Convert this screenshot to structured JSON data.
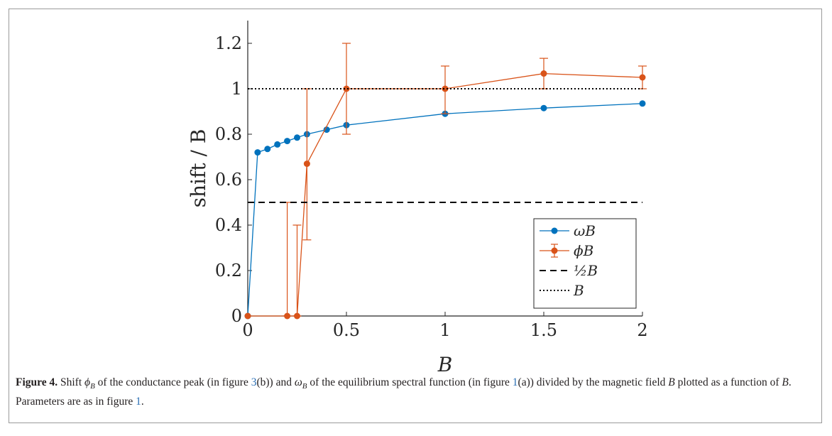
{
  "chart_data": {
    "type": "line",
    "xlabel": "B",
    "ylabel": "shift / B",
    "xlim": [
      0,
      2
    ],
    "ylim": [
      0,
      1.3
    ],
    "xticks": [
      "0",
      "0.5",
      "1",
      "1.5",
      "2"
    ],
    "xtick_values": [
      0,
      0.5,
      1,
      1.5,
      2
    ],
    "yticks": [
      "0",
      "0.2",
      "0.4",
      "0.6",
      "0.8",
      "1",
      "1.2"
    ],
    "ytick_values": [
      0,
      0.2,
      0.4,
      0.6,
      0.8,
      1.0,
      1.2
    ],
    "grid": false,
    "legend_position": "lower-right",
    "series": [
      {
        "name": "ωB",
        "color": "#0072BD",
        "style": "line-marker",
        "x": [
          0,
          0.05,
          0.1,
          0.15,
          0.2,
          0.25,
          0.3,
          0.4,
          0.5,
          1.0,
          1.5,
          2.0
        ],
        "y": [
          0,
          0.72,
          0.735,
          0.755,
          0.77,
          0.785,
          0.8,
          0.82,
          0.84,
          0.89,
          0.915,
          0.935
        ]
      },
      {
        "name": "ϕB",
        "color": "#D95319",
        "style": "errorbar",
        "x": [
          0,
          0.2,
          0.25,
          0.3,
          0.5,
          1.0,
          1.5,
          2.0
        ],
        "y": [
          0,
          0,
          0,
          0.67,
          1.0,
          1.0,
          1.067,
          1.05
        ],
        "err_low": [
          0,
          0,
          0,
          0.335,
          0.2,
          0.11,
          0.067,
          0.05
        ],
        "err_high": [
          0,
          0.5,
          0.4,
          0.33,
          0.2,
          0.1,
          0.067,
          0.05
        ]
      },
      {
        "name": "½B",
        "color": "#000000",
        "style": "dashed",
        "y_constant": 0.5
      },
      {
        "name": "B",
        "color": "#000000",
        "style": "dotted",
        "y_constant": 1.0
      }
    ]
  },
  "caption": {
    "figure_label": "Figure 4.",
    "t1": " Shift ",
    "sym_phi": "ϕ",
    "sub_B1": "B",
    "t2": " of the conductance peak (in figure ",
    "ref1": "3",
    "t3": "(b)) and ",
    "sym_omega": "ω",
    "sub_B2": "B",
    "t4": " of the equilibrium spectral function (in figure ",
    "ref2": "1",
    "t5": "(a)) divided by the magnetic field ",
    "sym_B1": "B",
    "t6": " plotted as a function of ",
    "sym_B2": "B",
    "t7": ". Parameters are as in figure ",
    "ref3": "1",
    "t8": "."
  }
}
